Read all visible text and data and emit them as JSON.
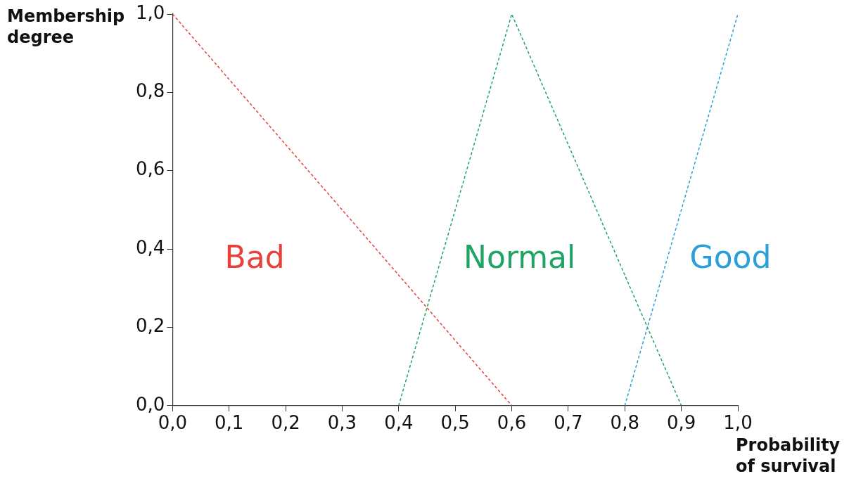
{
  "chart_data": {
    "type": "line",
    "xlabel": "Probability of survival",
    "ylabel": "Membership degree",
    "xlim": [
      0,
      1
    ],
    "ylim": [
      0,
      1
    ],
    "xticks": [
      {
        "value": 0,
        "label": "0,0"
      },
      {
        "value": 0.1,
        "label": "0,1"
      },
      {
        "value": 0.2,
        "label": "0,2"
      },
      {
        "value": 0.3,
        "label": "0,3"
      },
      {
        "value": 0.4,
        "label": "0,4"
      },
      {
        "value": 0.5,
        "label": "0,5"
      },
      {
        "value": 0.6,
        "label": "0,6"
      },
      {
        "value": 0.7,
        "label": "0,7"
      },
      {
        "value": 0.8,
        "label": "0,8"
      },
      {
        "value": 0.9,
        "label": "0,9"
      },
      {
        "value": 1,
        "label": "1,0"
      }
    ],
    "yticks": [
      {
        "value": 0,
        "label": "0,0"
      },
      {
        "value": 0.2,
        "label": "0,2"
      },
      {
        "value": 0.4,
        "label": "0,4"
      },
      {
        "value": 0.6,
        "label": "0,6"
      },
      {
        "value": 0.8,
        "label": "0,8"
      },
      {
        "value": 1,
        "label": "1,0"
      }
    ],
    "grid": false,
    "legend": false,
    "marker": "none",
    "line_style": "dashed",
    "series": [
      {
        "name": "Bad",
        "color": "#e8413c",
        "x": [
          0,
          0.6
        ],
        "values": [
          1,
          0
        ]
      },
      {
        "name": "Normal",
        "color": "#1fa463",
        "x": [
          0.4,
          0.6,
          0.9
        ],
        "values": [
          0,
          1,
          0
        ]
      },
      {
        "name": "Good",
        "color": "#2a9fd8",
        "x": [
          0.8,
          1
        ],
        "values": [
          0,
          1
        ]
      }
    ]
  }
}
